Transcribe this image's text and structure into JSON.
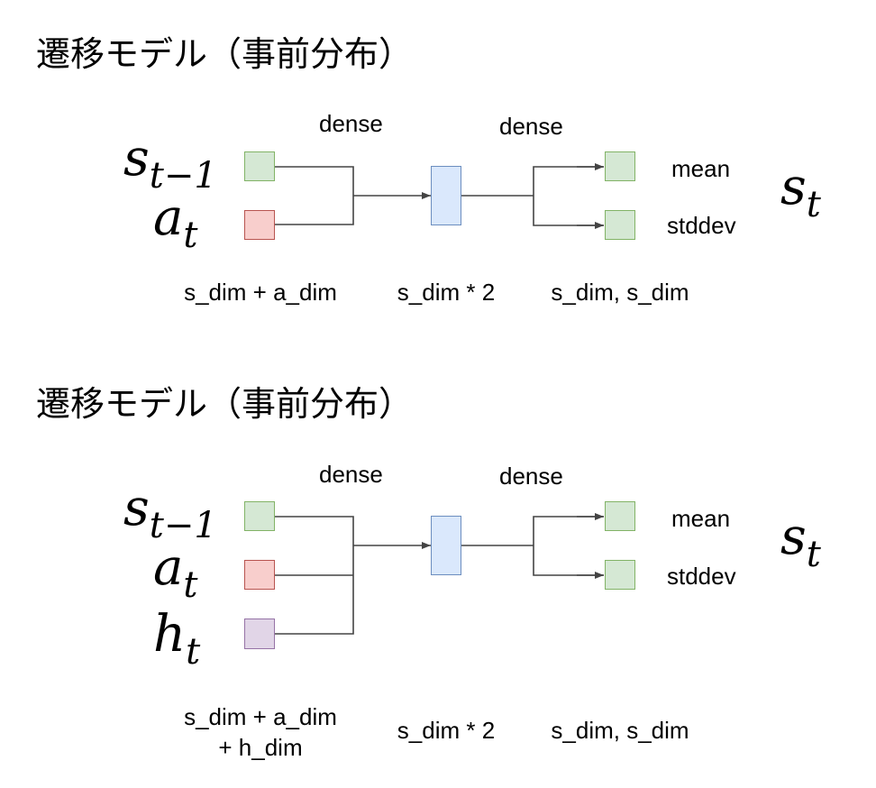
{
  "diagram1": {
    "title": "遷移モデル（事前分布）",
    "inputs": [
      {
        "var": "s",
        "sub": "t−1"
      },
      {
        "var": "a",
        "sub": "t"
      }
    ],
    "dense_left": "dense",
    "dense_right": "dense",
    "output_mean": "mean",
    "output_stddev": "stddev",
    "output_var": {
      "var": "s",
      "sub": "t"
    },
    "dim_input": "s_dim + a_dim",
    "dim_hidden": "s_dim * 2",
    "dim_output": "s_dim, s_dim"
  },
  "diagram2": {
    "title": "遷移モデル（事前分布）",
    "inputs": [
      {
        "var": "s",
        "sub": "t−1"
      },
      {
        "var": "a",
        "sub": "t"
      },
      {
        "var": "h",
        "sub": "t"
      }
    ],
    "dense_left": "dense",
    "dense_right": "dense",
    "output_mean": "mean",
    "output_stddev": "stddev",
    "output_var": {
      "var": "s",
      "sub": "t"
    },
    "dim_input": "s_dim + a_dim\n+ h_dim",
    "dim_hidden": "s_dim * 2",
    "dim_output": "s_dim, s_dim"
  },
  "colors": {
    "state_fill": "#d5e8d4",
    "state_border": "#82b366",
    "action_fill": "#f8cecc",
    "action_border": "#b85450",
    "hidden_fill": "#e1d5e7",
    "hidden_border": "#9673a6",
    "dense_fill": "#dae8fc",
    "dense_border": "#6c8ebf",
    "wire": "#444444"
  }
}
